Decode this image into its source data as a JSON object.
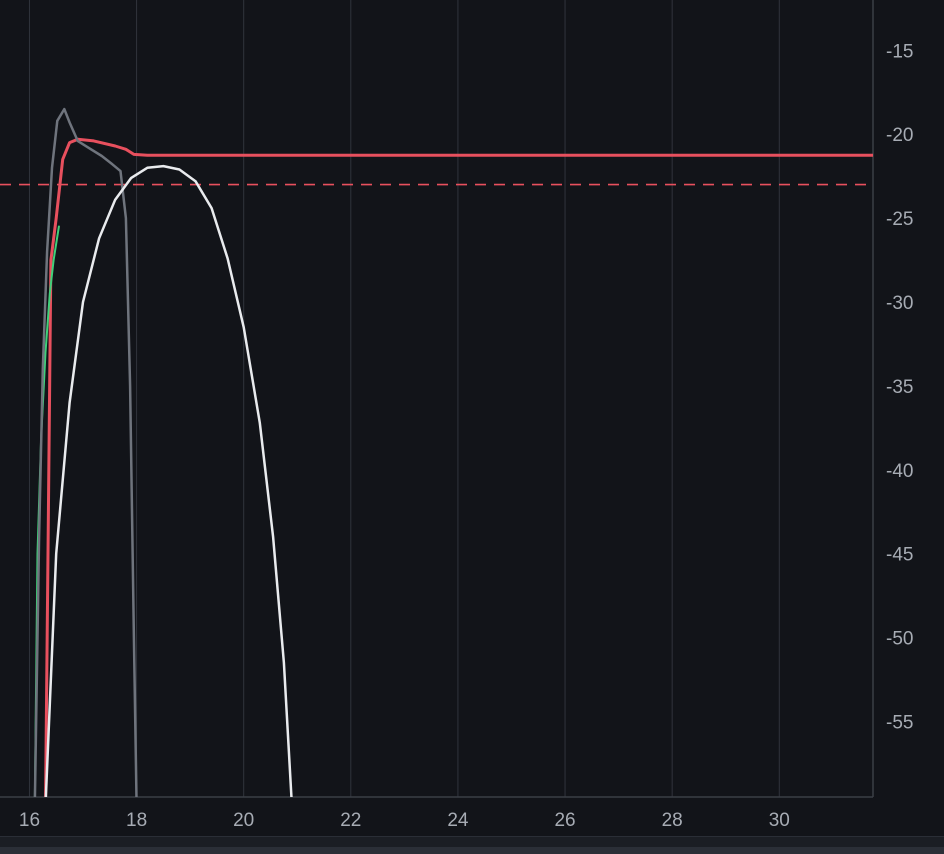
{
  "chart_data": {
    "type": "line",
    "title": "",
    "xlabel": "",
    "ylabel": "",
    "xlim": [
      15.45,
      31.75
    ],
    "ylim": [
      -59.5,
      -12
    ],
    "x_ticks": [
      16,
      18,
      20,
      22,
      24,
      26,
      28,
      30
    ],
    "y_ticks": [
      -15,
      -20,
      -25,
      -30,
      -35,
      -40,
      -45,
      -50,
      -55
    ],
    "grid": "vertical",
    "y_axis_side": "right",
    "threshold": {
      "value": -23,
      "style": "dashed",
      "color": "#e8505e"
    },
    "series": [
      {
        "color": "#e8505e",
        "width": 3,
        "points": [
          [
            16.3,
            -60
          ],
          [
            16.4,
            -27.5
          ],
          [
            16.5,
            -25
          ],
          [
            16.62,
            -21.5
          ],
          [
            16.75,
            -20.5
          ],
          [
            16.9,
            -20.3
          ],
          [
            17.2,
            -20.4
          ],
          [
            17.6,
            -20.7
          ],
          [
            17.8,
            -20.9
          ],
          [
            17.95,
            -21.2
          ],
          [
            18.2,
            -21.25
          ],
          [
            31.75,
            -21.25
          ]
        ]
      },
      {
        "color": "#3fd07a",
        "width": 2,
        "points": [
          [
            16.1,
            -60
          ],
          [
            16.15,
            -45
          ],
          [
            16.22,
            -38
          ],
          [
            16.3,
            -33
          ],
          [
            16.38,
            -29.5
          ],
          [
            16.45,
            -27.5
          ],
          [
            16.55,
            -25.5
          ]
        ]
      },
      {
        "color": "#6f747d",
        "width": 2.5,
        "points": [
          [
            16.1,
            -60
          ],
          [
            16.18,
            -44
          ],
          [
            16.25,
            -34
          ],
          [
            16.33,
            -27
          ],
          [
            16.42,
            -22
          ],
          [
            16.52,
            -19.2
          ],
          [
            16.65,
            -18.5
          ],
          [
            16.75,
            -19.3
          ],
          [
            16.9,
            -20.4
          ],
          [
            17.1,
            -20.8
          ],
          [
            17.35,
            -21.3
          ],
          [
            17.55,
            -21.8
          ],
          [
            17.7,
            -22.2
          ],
          [
            17.8,
            -25
          ],
          [
            17.88,
            -35
          ],
          [
            17.95,
            -50
          ],
          [
            18.0,
            -60
          ]
        ]
      },
      {
        "color": "#e9ebee",
        "width": 2.5,
        "points": [
          [
            16.3,
            -60
          ],
          [
            16.5,
            -45
          ],
          [
            16.75,
            -36
          ],
          [
            17.0,
            -30
          ],
          [
            17.3,
            -26.2
          ],
          [
            17.6,
            -23.9
          ],
          [
            17.9,
            -22.6
          ],
          [
            18.2,
            -22
          ],
          [
            18.5,
            -21.9
          ],
          [
            18.8,
            -22.1
          ],
          [
            19.1,
            -22.8
          ],
          [
            19.4,
            -24.4
          ],
          [
            19.7,
            -27.4
          ],
          [
            20.0,
            -31.5
          ],
          [
            20.3,
            -37.2
          ],
          [
            20.55,
            -44
          ],
          [
            20.75,
            -51.5
          ],
          [
            20.9,
            -60
          ]
        ]
      }
    ]
  }
}
